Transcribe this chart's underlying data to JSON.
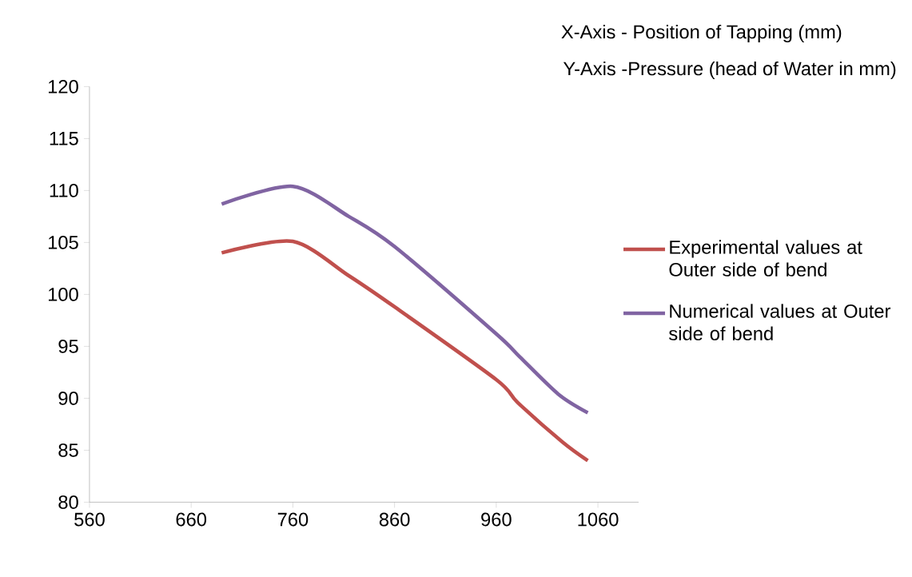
{
  "chart_data": {
    "type": "line",
    "xlabel": "X-Axis - Position of Tapping (mm)",
    "ylabel": "Y-Axis -Pressure (head of Water in mm)",
    "xlim": [
      560,
      1100
    ],
    "xticks": [
      560,
      660,
      760,
      860,
      960,
      1060
    ],
    "ylim": [
      80,
      120
    ],
    "yticks": [
      80,
      85,
      90,
      95,
      100,
      105,
      110,
      115,
      120
    ],
    "grid": false,
    "legend": "right",
    "marker": "none",
    "line_style": "solid",
    "series": [
      {
        "name": "Experimental values at Outer side of bend",
        "color": "#c0504d",
        "x": [
          690,
          760,
          815,
          860,
          960,
          981,
          1025,
          1050
        ],
        "values": [
          104.0,
          105.1,
          101.8,
          98.8,
          91.8,
          89.6,
          85.8,
          84.0
        ]
      },
      {
        "name": "Numerical values at Outer side of bend",
        "color": "#8064a2",
        "x": [
          690,
          760,
          815,
          860,
          960,
          983,
          1021,
          1050
        ],
        "values": [
          108.7,
          110.4,
          107.5,
          104.6,
          96.2,
          94.0,
          90.4,
          88.6
        ]
      }
    ]
  }
}
